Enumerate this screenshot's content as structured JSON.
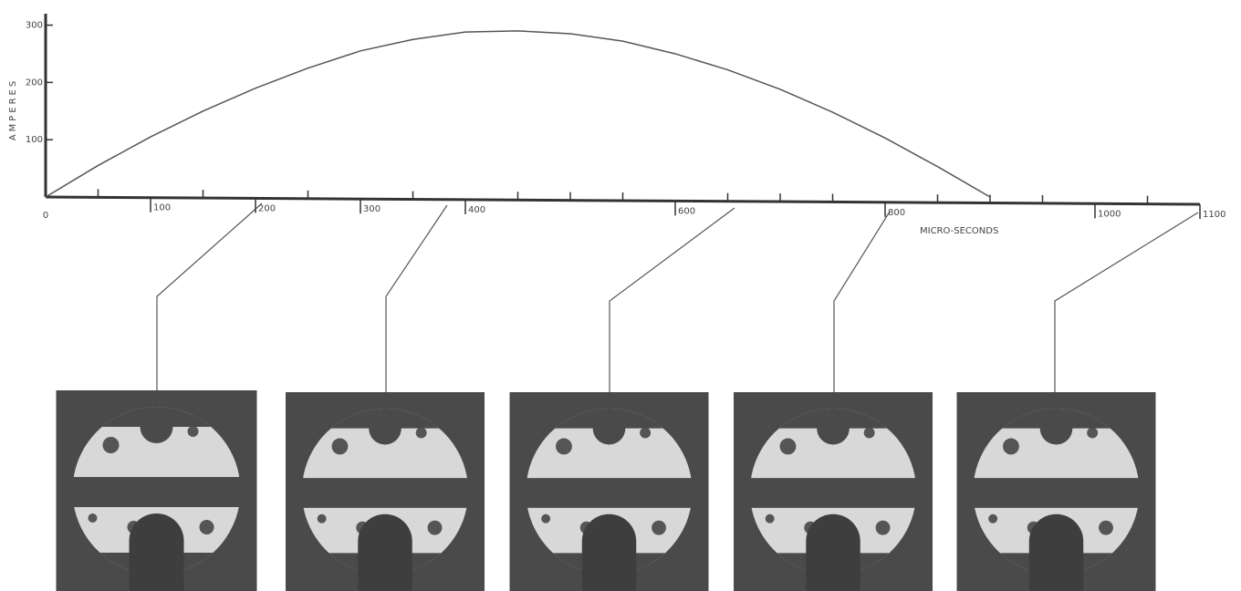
{
  "chart_data": {
    "type": "line",
    "xlabel": "MICRO-SECONDS",
    "ylabel": "AMPERES",
    "x": [
      0,
      50,
      100,
      150,
      200,
      250,
      300,
      350,
      400,
      450,
      500,
      550,
      600,
      650,
      700,
      750,
      800,
      850,
      900
    ],
    "series": [
      {
        "color": "#555555",
        "values": [
          0,
          55,
          105,
          150,
          190,
          225,
          255,
          275,
          288,
          290,
          285,
          272,
          250,
          222,
          188,
          148,
          103,
          53,
          0
        ]
      }
    ],
    "xlim": [
      0,
      1100
    ],
    "ylim": [
      0,
      320
    ],
    "xticks": [
      0,
      100,
      200,
      300,
      400,
      600,
      800,
      1000,
      1100
    ],
    "xminorticks": [
      50,
      150,
      250,
      350,
      450,
      500,
      550,
      650,
      700,
      750,
      850,
      900,
      950,
      1050
    ],
    "yticks": [
      100,
      200,
      300
    ]
  }
}
